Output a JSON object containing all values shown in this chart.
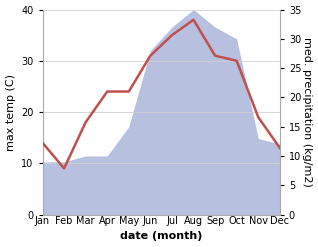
{
  "months": [
    "Jan",
    "Feb",
    "Mar",
    "Apr",
    "May",
    "Jun",
    "Jul",
    "Aug",
    "Sep",
    "Oct",
    "Nov",
    "Dec"
  ],
  "temp": [
    14,
    9,
    18,
    24,
    24,
    31,
    35,
    38,
    31,
    30,
    19,
    13
  ],
  "precip": [
    9,
    9,
    10,
    10,
    15,
    28,
    32,
    35,
    32,
    30,
    13,
    12
  ],
  "temp_color": "#c0504d",
  "precip_fill_color": "#b8c0e0",
  "ylabel_left": "max temp (C)",
  "ylabel_right": "med. precipitation (kg/m2)",
  "xlabel": "date (month)",
  "ylim_left": [
    0,
    40
  ],
  "ylim_right": [
    0,
    35
  ],
  "yticks_left": [
    0,
    10,
    20,
    30,
    40
  ],
  "yticks_right": [
    0,
    5,
    10,
    15,
    20,
    25,
    30,
    35
  ],
  "bg_color": "#ffffff",
  "grid_color": "#d0d0d0",
  "temp_linewidth": 1.8,
  "xlabel_fontsize": 8,
  "ylabel_fontsize": 8,
  "tick_fontsize": 7
}
